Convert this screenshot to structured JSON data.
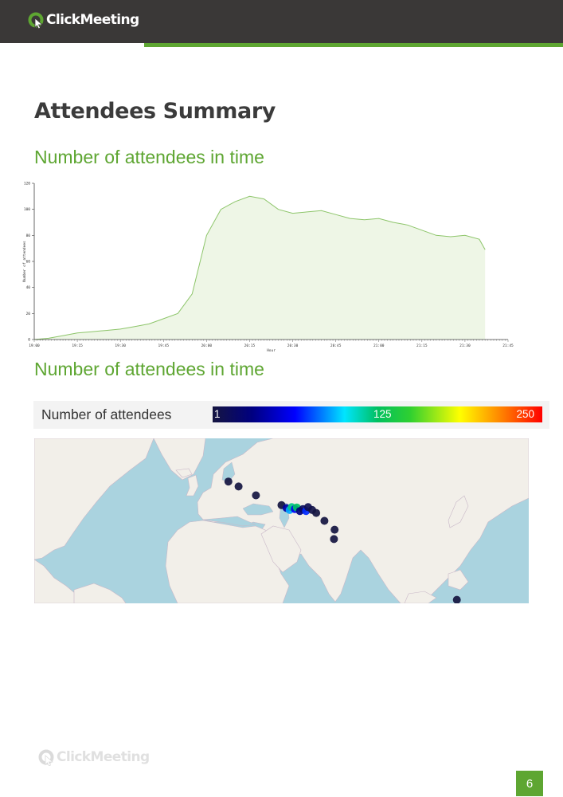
{
  "header": {
    "brand": "ClickMeeting"
  },
  "page_title": "Attendees Summary",
  "sections": [
    {
      "title": "Number of attendees in time"
    },
    {
      "title": "Number of attendees in time"
    }
  ],
  "chart_data": {
    "type": "area",
    "title": "",
    "xlabel": "Hour",
    "ylabel": "Number of attendees",
    "ylim": [
      0,
      120
    ],
    "yticks": [
      0,
      20,
      40,
      60,
      80,
      100,
      120
    ],
    "xticks": [
      "19:00",
      "19:15",
      "19:30",
      "19:45",
      "20:00",
      "20:15",
      "20:30",
      "20:45",
      "21:00",
      "21:15",
      "21:30",
      "21:45"
    ],
    "x": [
      "19:00",
      "19:05",
      "19:10",
      "19:15",
      "19:20",
      "19:25",
      "19:30",
      "19:35",
      "19:40",
      "19:45",
      "19:50",
      "19:55",
      "20:00",
      "20:05",
      "20:10",
      "20:15",
      "20:20",
      "20:25",
      "20:30",
      "20:35",
      "20:40",
      "20:45",
      "20:50",
      "20:55",
      "21:00",
      "21:05",
      "21:10",
      "21:15",
      "21:20",
      "21:25",
      "21:30",
      "21:35",
      "21:37"
    ],
    "series": [
      {
        "values": [
          0,
          1,
          3,
          5,
          6,
          7,
          8,
          10,
          12,
          16,
          20,
          35,
          80,
          100,
          106,
          110,
          108,
          100,
          97,
          98,
          99,
          96,
          93,
          92,
          93,
          90,
          88,
          84,
          80,
          79,
          80,
          77,
          69
        ]
      }
    ],
    "colors": {
      "line": "#8dc56a",
      "fill": "#eef6e6"
    },
    "grid": false
  },
  "map_legend": {
    "label": "Number of attendees",
    "min_label": "1",
    "mid_label": "125",
    "max_label": "250"
  },
  "map_points": [
    {
      "lon": -5,
      "lat": 54,
      "level": 1
    },
    {
      "lon": 0,
      "lat": 51.5,
      "level": 1
    },
    {
      "lon": 8.5,
      "lat": 47,
      "level": 1
    },
    {
      "lon": 21,
      "lat": 42,
      "level": 1
    },
    {
      "lon": 23.5,
      "lat": 40.5,
      "level": 40
    },
    {
      "lon": 25,
      "lat": 39.5,
      "level": 90
    },
    {
      "lon": 26,
      "lat": 41,
      "level": 120
    },
    {
      "lon": 27.5,
      "lat": 40,
      "level": 60
    },
    {
      "lon": 28.5,
      "lat": 40.8,
      "level": 125
    },
    {
      "lon": 30,
      "lat": 39,
      "level": 30
    },
    {
      "lon": 31.5,
      "lat": 40,
      "level": 15
    },
    {
      "lon": 33,
      "lat": 39,
      "level": 70
    },
    {
      "lon": 34,
      "lat": 41,
      "level": 10
    },
    {
      "lon": 36,
      "lat": 39.5,
      "level": 5
    },
    {
      "lon": 38,
      "lat": 38,
      "level": 1
    },
    {
      "lon": 42,
      "lat": 34,
      "level": 1
    },
    {
      "lon": 47,
      "lat": 29.5,
      "level": 1
    },
    {
      "lon": 46.7,
      "lat": 24.7,
      "level": 1
    },
    {
      "lon": 106.8,
      "lat": -6.2,
      "level": 1
    }
  ],
  "footer": {
    "brand": "ClickMeeting",
    "page_number": "6"
  }
}
